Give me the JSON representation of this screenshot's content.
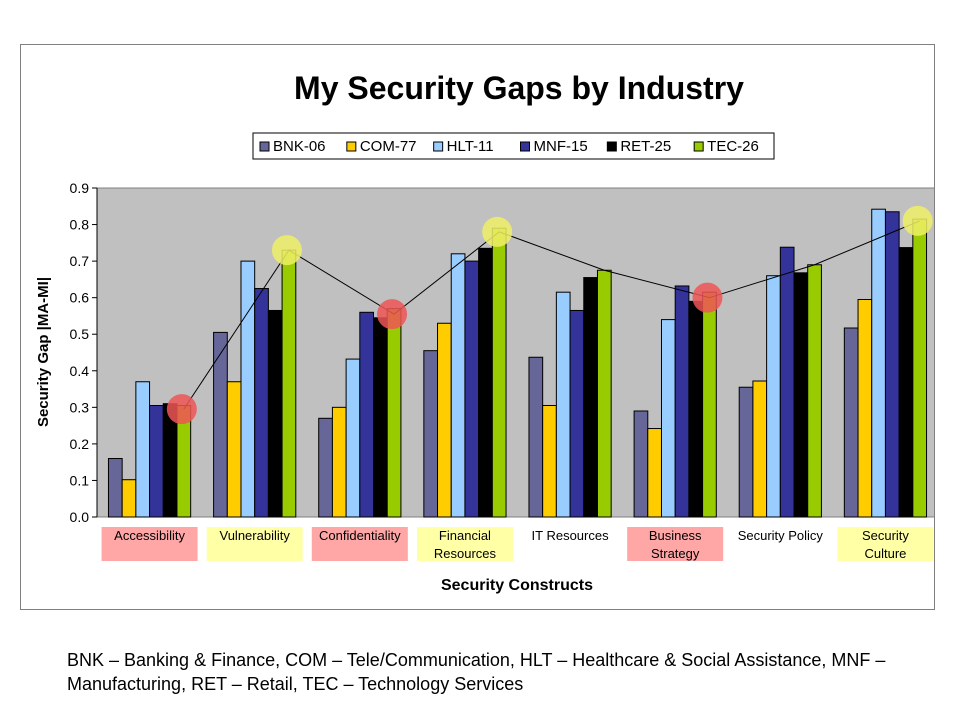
{
  "chart_data": {
    "type": "bar",
    "title": "My Security Gaps by Industry",
    "xlabel": "Security Constructs",
    "ylabel": "Security Gap |MA-MI|",
    "ylim": [
      0,
      0.9
    ],
    "yticks": [
      "0.0",
      "0.1",
      "0.2",
      "0.3",
      "0.4",
      "0.5",
      "0.6",
      "0.7",
      "0.8",
      "0.9"
    ],
    "grid": false,
    "legend_position": "top",
    "plot_background": "#c0c0c0",
    "categories": [
      "Accessibility",
      "Vulnerability",
      "Confidentiality",
      "Financial Resources",
      "IT Resources",
      "Business Strategy",
      "Security Policy",
      "Security Culture"
    ],
    "category_label_lines": [
      [
        "Accessibility"
      ],
      [
        "Vulnerability"
      ],
      [
        "Confidentiality"
      ],
      [
        "Financial",
        "Resources"
      ],
      [
        "IT Resources"
      ],
      [
        "Business",
        "Strategy"
      ],
      [
        "Security Policy"
      ],
      [
        "Security",
        "Culture"
      ]
    ],
    "category_highlight": [
      "red",
      "yellow",
      "red",
      "yellow",
      "none",
      "red",
      "none",
      "yellow"
    ],
    "highlight_colors": {
      "red": "#ffa6a6",
      "yellow": "#ffffa6"
    },
    "series": [
      {
        "name": "BNK-06",
        "color": "#666699",
        "values": [
          0.16,
          0.505,
          0.27,
          0.455,
          0.437,
          0.29,
          0.355,
          0.517
        ]
      },
      {
        "name": "COM-77",
        "color": "#ffcc00",
        "values": [
          0.102,
          0.37,
          0.3,
          0.53,
          0.305,
          0.242,
          0.372,
          0.595
        ]
      },
      {
        "name": "HLT-11",
        "color": "#99ccff",
        "values": [
          0.37,
          0.7,
          0.432,
          0.72,
          0.615,
          0.54,
          0.66,
          0.842
        ]
      },
      {
        "name": "MNF-15",
        "color": "#333399",
        "values": [
          0.305,
          0.625,
          0.56,
          0.7,
          0.565,
          0.632,
          0.738,
          0.835
        ]
      },
      {
        "name": "RET-25",
        "color": "#000000",
        "values": [
          0.31,
          0.565,
          0.545,
          0.735,
          0.655,
          0.59,
          0.668,
          0.737
        ]
      },
      {
        "name": "TEC-26",
        "color": "#99cc00",
        "values": [
          0.305,
          0.73,
          0.57,
          0.79,
          0.675,
          0.615,
          0.69,
          0.815
        ]
      }
    ],
    "trend_line": {
      "values": [
        0.295,
        0.73,
        0.555,
        0.78,
        0.675,
        0.6,
        0.69,
        0.81
      ],
      "marker_colors": [
        "red",
        "yellow",
        "red",
        "yellow",
        "none",
        "red",
        "none",
        "yellow"
      ],
      "marker_fill": {
        "red": "#ee5555",
        "yellow": "#eeee66"
      }
    }
  },
  "caption": "BNK – Banking & Finance, COM – Tele/Communication, HLT – Healthcare & Social Assistance, MNF – Manufacturing, RET – Retail, TEC – Technology Services"
}
